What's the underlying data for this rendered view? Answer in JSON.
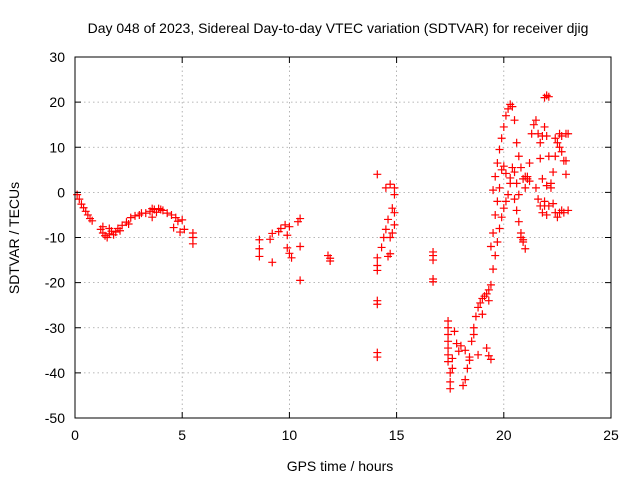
{
  "chart_data": {
    "type": "scatter",
    "title": "Day 048 of 2023, Sidereal Day-to-day VTEC variation (SDTVAR) for receiver djig",
    "xlabel": "GPS time / hours",
    "ylabel": "SDTVAR / TECUs",
    "xlim": [
      0,
      25
    ],
    "ylim": [
      -50,
      30
    ],
    "xticks": [
      0,
      5,
      10,
      15,
      20,
      25
    ],
    "yticks": [
      -50,
      -40,
      -30,
      -20,
      -10,
      0,
      10,
      20,
      30
    ],
    "grid": true,
    "legend": "none",
    "marker": "plus",
    "color": "#ff0000",
    "series": [
      {
        "points": [
          [
            0.1,
            -0.5
          ],
          [
            0.2,
            -1.5
          ],
          [
            0.3,
            -2.6
          ],
          [
            0.4,
            -3.4
          ],
          [
            0.5,
            -4.2
          ],
          [
            0.6,
            -5.0
          ],
          [
            0.7,
            -5.8
          ],
          [
            0.8,
            -6.3
          ],
          [
            1.2,
            -8.2
          ],
          [
            1.3,
            -9.0
          ],
          [
            1.4,
            -9.6
          ],
          [
            1.5,
            -10.0
          ],
          [
            1.6,
            -9.2
          ],
          [
            1.7,
            -8.6
          ],
          [
            1.8,
            -9.4
          ],
          [
            1.9,
            -8.8
          ],
          [
            2.0,
            -8.0
          ],
          [
            2.1,
            -8.5
          ],
          [
            2.2,
            -7.3
          ],
          [
            2.4,
            -6.6
          ],
          [
            2.6,
            -5.6
          ],
          [
            2.8,
            -5.2
          ],
          [
            3.0,
            -5.0
          ],
          [
            3.1,
            -4.6
          ],
          [
            3.3,
            -4.6
          ],
          [
            3.5,
            -4.2
          ],
          [
            3.6,
            -3.6
          ],
          [
            3.7,
            -3.8
          ],
          [
            3.8,
            -4.4
          ],
          [
            3.9,
            -3.6
          ],
          [
            4.0,
            -3.8
          ],
          [
            4.1,
            -4.0
          ],
          [
            4.3,
            -4.6
          ],
          [
            4.5,
            -5.0
          ],
          [
            4.7,
            -5.6
          ],
          [
            4.8,
            -6.4
          ],
          [
            5.0,
            -6.1
          ],
          [
            1.3,
            -7.6
          ],
          [
            1.6,
            -8.0
          ],
          [
            2.5,
            -7.0
          ],
          [
            3.6,
            -5.5
          ],
          [
            4.6,
            -7.8
          ],
          [
            4.9,
            -8.8
          ],
          [
            5.1,
            -8.2
          ],
          [
            5.5,
            -9.0
          ],
          [
            5.5,
            -10.0
          ],
          [
            5.5,
            -11.4
          ]
        ]
      },
      {
        "points": [
          [
            8.6,
            -10.5
          ],
          [
            8.6,
            -12.5
          ],
          [
            8.6,
            -14.2
          ],
          [
            9.1,
            -10.4
          ],
          [
            9.2,
            -9.1
          ],
          [
            9.2,
            -15.5
          ],
          [
            9.5,
            -8.7
          ],
          [
            9.6,
            -8.0
          ],
          [
            9.8,
            -7.2
          ],
          [
            9.9,
            -9.5
          ],
          [
            9.9,
            -12.3
          ],
          [
            10.0,
            -13.5
          ],
          [
            10.1,
            -14.5
          ],
          [
            10.0,
            -7.6
          ],
          [
            10.4,
            -6.5
          ],
          [
            10.5,
            -5.8
          ],
          [
            10.5,
            -12.0
          ],
          [
            10.5,
            -19.5
          ],
          [
            11.8,
            -14.0
          ],
          [
            11.9,
            -14.6
          ],
          [
            11.9,
            -15.2
          ]
        ]
      },
      {
        "points": [
          [
            14.1,
            4.0
          ],
          [
            14.1,
            -14.5
          ],
          [
            14.1,
            -16.2
          ],
          [
            14.1,
            -17.3
          ],
          [
            14.1,
            -24.0
          ],
          [
            14.1,
            -24.8
          ],
          [
            14.1,
            -35.5
          ],
          [
            14.1,
            -36.5
          ],
          [
            14.3,
            -12.2
          ],
          [
            14.4,
            -10.0
          ],
          [
            14.5,
            -8.2
          ],
          [
            14.5,
            1.0
          ],
          [
            14.6,
            -6.0
          ],
          [
            14.6,
            -14.2
          ],
          [
            14.7,
            -13.6
          ],
          [
            14.7,
            -10.0
          ],
          [
            14.7,
            1.8
          ],
          [
            14.8,
            -3.5
          ],
          [
            14.8,
            -9.0
          ],
          [
            14.9,
            1.0
          ],
          [
            14.9,
            -0.5
          ],
          [
            14.9,
            -4.5
          ],
          [
            14.9,
            -7.2
          ],
          [
            16.7,
            -13.2
          ],
          [
            16.7,
            -14.0
          ],
          [
            16.7,
            -15.0
          ],
          [
            16.7,
            -19.2
          ],
          [
            16.7,
            -19.8
          ]
        ]
      },
      {
        "points": [
          [
            17.4,
            -28.5
          ],
          [
            17.4,
            -30.0
          ],
          [
            17.4,
            -31.5
          ],
          [
            17.4,
            -33.0
          ],
          [
            17.4,
            -34.5
          ],
          [
            17.4,
            -36.0
          ],
          [
            17.4,
            -37.5
          ],
          [
            17.5,
            -40.0
          ],
          [
            17.5,
            -42.0
          ],
          [
            17.5,
            -43.5
          ],
          [
            17.6,
            -39.0
          ],
          [
            17.6,
            -36.8
          ],
          [
            17.7,
            -30.8
          ],
          [
            17.8,
            -33.5
          ],
          [
            17.9,
            -35.2
          ],
          [
            18.0,
            -34.0
          ],
          [
            18.1,
            -42.8
          ],
          [
            18.2,
            -41.5
          ],
          [
            18.3,
            -39.0
          ],
          [
            18.4,
            -36.5
          ],
          [
            18.5,
            -33.0
          ],
          [
            18.6,
            -30.0
          ],
          [
            18.7,
            -27.5
          ],
          [
            18.8,
            -25.5
          ],
          [
            18.9,
            -24.5
          ],
          [
            19.0,
            -23.5
          ],
          [
            19.1,
            -23.0
          ],
          [
            19.2,
            -22.5
          ],
          [
            19.3,
            -21.6
          ],
          [
            19.4,
            -20.5
          ],
          [
            19.5,
            -17.0
          ],
          [
            19.6,
            -14.0
          ],
          [
            19.7,
            -11.0
          ],
          [
            19.8,
            -8.0
          ],
          [
            19.9,
            -5.5
          ],
          [
            20.0,
            -3.5
          ],
          [
            20.1,
            -2.0
          ],
          [
            20.2,
            -0.5
          ],
          [
            20.3,
            2.0
          ],
          [
            20.4,
            5.5
          ],
          [
            20.5,
            4.5
          ],
          [
            20.6,
            2.0
          ],
          [
            20.7,
            -0.5
          ],
          [
            18.4,
            -37.2
          ],
          [
            18.8,
            -36.0
          ],
          [
            19.2,
            -34.5
          ],
          [
            19.3,
            -36.2
          ],
          [
            19.4,
            -37.0
          ],
          [
            18.2,
            -35.0
          ],
          [
            18.6,
            -31.5
          ],
          [
            19.0,
            -27.0
          ],
          [
            19.3,
            -24.0
          ],
          [
            19.4,
            -12.0
          ],
          [
            19.5,
            -9.0
          ],
          [
            19.6,
            -5.0
          ],
          [
            19.7,
            -2.0
          ],
          [
            19.8,
            1.0
          ],
          [
            19.9,
            5.0
          ],
          [
            20.0,
            5.8
          ],
          [
            20.1,
            4.2
          ],
          [
            20.3,
            3.2
          ],
          [
            20.5,
            -1.5
          ],
          [
            20.6,
            -4.0
          ],
          [
            20.7,
            -6.5
          ],
          [
            20.8,
            -9.0
          ],
          [
            20.9,
            -11.0
          ],
          [
            21.0,
            -12.5
          ]
        ]
      },
      {
        "points": [
          [
            19.5,
            0.5
          ],
          [
            19.6,
            3.5
          ],
          [
            19.7,
            6.5
          ],
          [
            19.8,
            9.5
          ],
          [
            19.9,
            12.0
          ],
          [
            20.0,
            14.5
          ],
          [
            20.1,
            17.0
          ],
          [
            20.2,
            18.5
          ],
          [
            20.3,
            19.5
          ],
          [
            20.4,
            19.0
          ],
          [
            20.5,
            16.0
          ],
          [
            20.6,
            11.0
          ],
          [
            20.7,
            8.0
          ],
          [
            20.8,
            5.5
          ],
          [
            20.9,
            3.0
          ],
          [
            21.0,
            1.0
          ],
          [
            21.1,
            3.5
          ],
          [
            21.2,
            6.5
          ],
          [
            21.3,
            13.0
          ],
          [
            21.4,
            15.0
          ],
          [
            21.5,
            16.0
          ],
          [
            21.6,
            13.0
          ],
          [
            21.7,
            11.0
          ],
          [
            21.8,
            12.5
          ],
          [
            21.9,
            14.5
          ],
          [
            22.0,
            12.5
          ],
          [
            22.1,
            8.0
          ],
          [
            22.2,
            2.0
          ],
          [
            22.3,
            -2.5
          ],
          [
            22.4,
            -4.5
          ],
          [
            22.5,
            -5.5
          ],
          [
            22.6,
            -4.5
          ],
          [
            22.7,
            -4.0
          ],
          [
            22.8,
            -4.5
          ],
          [
            21.9,
            21.0
          ],
          [
            22.0,
            21.5
          ],
          [
            22.1,
            21.2
          ],
          [
            21.7,
            7.5
          ],
          [
            21.8,
            3.0
          ],
          [
            21.9,
            -2.0
          ],
          [
            22.0,
            -5.0
          ],
          [
            22.1,
            -3.0
          ],
          [
            22.2,
            1.0
          ],
          [
            22.3,
            4.5
          ],
          [
            22.4,
            8.0
          ],
          [
            22.5,
            11.0
          ],
          [
            22.6,
            10.0
          ],
          [
            22.7,
            9.0
          ],
          [
            22.8,
            7.0
          ],
          [
            22.9,
            7.0
          ],
          [
            22.9,
            4.0
          ],
          [
            22.4,
            12.0
          ],
          [
            22.6,
            13.0
          ],
          [
            22.7,
            12.5
          ],
          [
            22.9,
            13.0
          ],
          [
            23.0,
            13.0
          ],
          [
            23.0,
            -4.0
          ],
          [
            21.5,
            1.0
          ],
          [
            21.6,
            -1.5
          ],
          [
            21.7,
            -3.0
          ],
          [
            21.8,
            -4.5
          ],
          [
            21.9,
            -3.0
          ],
          [
            22.0,
            1.5
          ],
          [
            21.0,
            3.5
          ],
          [
            21.1,
            3.0
          ],
          [
            21.2,
            2.5
          ],
          [
            20.8,
            -10.0
          ],
          [
            20.9,
            -10.5
          ]
        ]
      }
    ]
  }
}
